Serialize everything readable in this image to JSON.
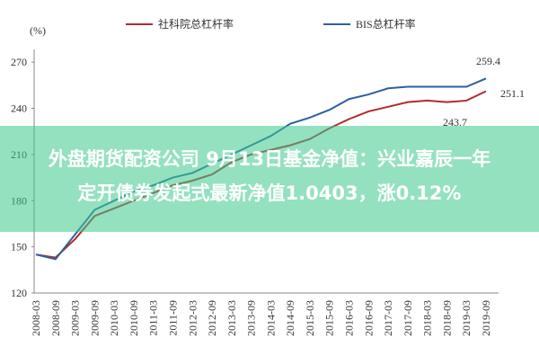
{
  "chart_data": {
    "type": "line",
    "y_unit_label": "(%)",
    "categories": [
      "2008-03",
      "2008-09",
      "2009-03",
      "2009-09",
      "2010-03",
      "2010-09",
      "2011-03",
      "2011-09",
      "2012-03",
      "2012-09",
      "2013-03",
      "2013-09",
      "2014-03",
      "2014-09",
      "2015-03",
      "2015-09",
      "2016-03",
      "2016-09",
      "2017-03",
      "2017-09",
      "2018-03",
      "2018-09",
      "2019-03",
      "2019-09"
    ],
    "series": [
      {
        "name": "社科院总杠杆率",
        "color": "#b22a2e",
        "values": [
          145,
          143,
          155,
          170,
          175,
          180,
          185,
          190,
          193,
          197,
          205,
          210,
          213,
          216,
          220,
          227,
          233,
          238,
          241,
          244,
          245,
          244,
          245,
          251.1
        ]
      },
      {
        "name": "BIS总杠杆率",
        "color": "#2e5fa3",
        "values": [
          145,
          142,
          158,
          174,
          180,
          186,
          190,
          195,
          198,
          204,
          210,
          216,
          222,
          230,
          234,
          239,
          246,
          249,
          253,
          254,
          254,
          254,
          254,
          259.4
        ]
      }
    ],
    "ylim": [
      120,
      280
    ],
    "yticks": [
      120,
      150,
      180,
      210,
      240,
      270
    ],
    "annotations": [
      "259.4",
      "251.1",
      "243.7"
    ],
    "banner": [
      "外盘期货配资公司 9月13日基金净值：兴业嘉辰一年",
      "定开债券发起式最新净值1.0403，涨0.12%"
    ]
  }
}
